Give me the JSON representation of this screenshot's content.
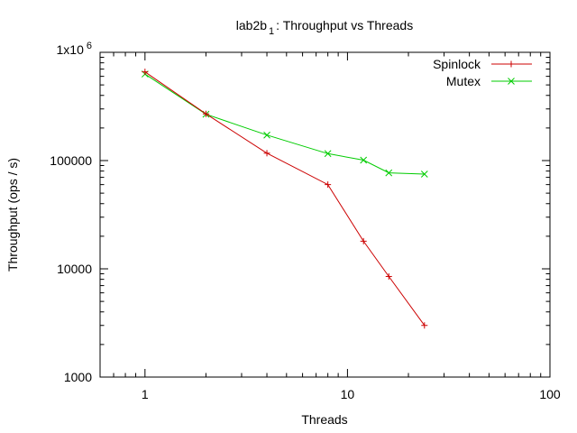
{
  "chart_data": {
    "type": "line",
    "title": "lab2b",
    "title_subscript": "1",
    "title_rest": ": Throughput vs Threads",
    "xlabel": "Threads",
    "ylabel": "Throughput (ops / s)",
    "xscale": "log",
    "yscale": "log",
    "xlim": [
      0.6,
      100
    ],
    "ylim": [
      1000,
      1000000
    ],
    "x_ticks": [
      {
        "value": 1,
        "label": "1"
      },
      {
        "value": 10,
        "label": "10"
      },
      {
        "value": 100,
        "label": "100"
      }
    ],
    "y_ticks": [
      {
        "value": 1000,
        "label": "1000"
      },
      {
        "value": 10000,
        "label": "10000"
      },
      {
        "value": 100000,
        "label": "100000"
      },
      {
        "value": 1000000,
        "label": "1x10",
        "exponent": "6"
      }
    ],
    "grid": false,
    "legend_position": "top-right",
    "series": [
      {
        "name": "Spinlock",
        "color": "#cc0000",
        "marker": "plus",
        "x": [
          1,
          2,
          4,
          8,
          12,
          16,
          24
        ],
        "y": [
          660000,
          270000,
          117000,
          60000,
          18000,
          8500,
          3000
        ]
      },
      {
        "name": "Mutex",
        "color": "#00cc00",
        "marker": "cross",
        "x": [
          1,
          2,
          4,
          8,
          12,
          16,
          24
        ],
        "y": [
          630000,
          268000,
          172000,
          116000,
          101000,
          77000,
          75000
        ]
      }
    ]
  }
}
